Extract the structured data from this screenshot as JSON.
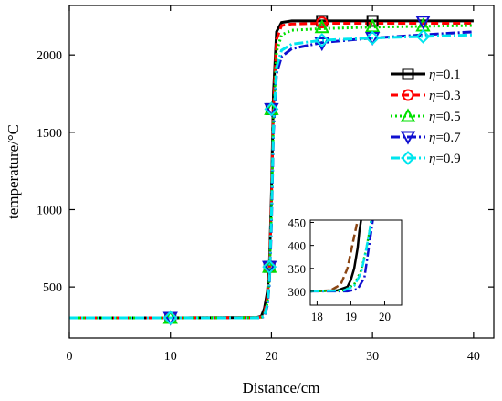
{
  "chart_data": {
    "type": "line",
    "xlabel": "Distance/cm",
    "ylabel": "temperature/°C",
    "xlim": [
      0,
      42
    ],
    "ylim": [
      170,
      2320
    ],
    "x_ticks": [
      0,
      10,
      20,
      30,
      40
    ],
    "x_tick_labels": [
      "0",
      "10",
      "20",
      "30",
      "40"
    ],
    "y_ticks": [
      500,
      1000,
      1500,
      2000
    ],
    "y_tick_labels": [
      "500",
      "1000",
      "1500",
      "2000"
    ],
    "grid": false,
    "legend_position": "right",
    "legend_symbol": "η",
    "series": [
      {
        "name": "=0.1",
        "color": "#000000",
        "dash": "",
        "marker": "square",
        "x": [
          0,
          10,
          18.5,
          19.0,
          19.3,
          19.6,
          19.8,
          20.0,
          20.2,
          20.5,
          21,
          22,
          25,
          30,
          35,
          40
        ],
        "y": [
          300,
          300,
          302,
          310,
          360,
          470,
          640,
          1100,
          1750,
          2150,
          2210,
          2220,
          2220,
          2220,
          2220,
          2220
        ],
        "markers_x": [
          10,
          19.8,
          20,
          25,
          30
        ],
        "markers_y": [
          300,
          630,
          1650,
          2220,
          2220
        ]
      },
      {
        "name": "=0.3",
        "color": "#ff0000",
        "dash": "8,4",
        "marker": "circle",
        "x": [
          0,
          10,
          18.5,
          19.0,
          19.3,
          19.6,
          19.8,
          20.0,
          20.2,
          20.5,
          21,
          22,
          25,
          30,
          35,
          40
        ],
        "y": [
          300,
          300,
          302,
          305,
          330,
          430,
          600,
          1050,
          1650,
          2100,
          2190,
          2200,
          2205,
          2205,
          2205,
          2205
        ],
        "markers_x": [
          10,
          19.8,
          20,
          25
        ],
        "markers_y": [
          300,
          630,
          1650,
          2210
        ]
      },
      {
        "name": "=0.5",
        "color": "#00e000",
        "dash": "2,3",
        "marker": "triangle-up",
        "x": [
          0,
          10,
          18.5,
          19.0,
          19.3,
          19.6,
          19.8,
          20.0,
          20.2,
          20.5,
          21,
          22,
          25,
          30,
          35,
          40
        ],
        "y": [
          300,
          300,
          302,
          304,
          320,
          400,
          560,
          980,
          1580,
          2020,
          2130,
          2160,
          2170,
          2180,
          2185,
          2190
        ],
        "markers_x": [
          10,
          19.8,
          20,
          25,
          30,
          35
        ],
        "markers_y": [
          300,
          630,
          1650,
          2180,
          2185,
          2190
        ]
      },
      {
        "name": "=0.7",
        "color": "#1010d0",
        "dash": "10,3,2,3",
        "marker": "triangle-down",
        "x": [
          0,
          10,
          18.5,
          19.0,
          19.3,
          19.6,
          19.8,
          20.0,
          20.2,
          20.5,
          21,
          22,
          25,
          30,
          35,
          40
        ],
        "y": [
          300,
          300,
          300,
          302,
          310,
          380,
          520,
          900,
          1500,
          1880,
          1990,
          2040,
          2080,
          2110,
          2130,
          2150
        ],
        "markers_x": [
          10,
          19.8,
          20,
          25,
          30,
          35
        ],
        "markers_y": [
          300,
          630,
          1650,
          2075,
          2110,
          2215
        ]
      },
      {
        "name": "=0.9",
        "color": "#00e5ee",
        "dash": "10,3,2,3",
        "marker": "diamond",
        "x": [
          0,
          10,
          18.5,
          19.0,
          19.3,
          19.6,
          19.8,
          20.0,
          20.2,
          20.5,
          21,
          22,
          25,
          30,
          35,
          40
        ],
        "y": [
          300,
          300,
          300,
          302,
          315,
          390,
          540,
          950,
          1540,
          1920,
          2030,
          2070,
          2095,
          2110,
          2120,
          2130
        ],
        "markers_x": [
          10,
          19.8,
          20,
          25,
          30,
          35
        ],
        "markers_y": [
          300,
          630,
          1650,
          2095,
          2110,
          2120
        ]
      }
    ],
    "inset": {
      "xlim": [
        17.8,
        20.5
      ],
      "ylim": [
        270,
        455
      ],
      "x_ticks": [
        18,
        19,
        20
      ],
      "x_tick_labels": [
        "18",
        "19",
        "20"
      ],
      "y_ticks": [
        300,
        350,
        400,
        450
      ],
      "y_tick_labels": [
        "300",
        "350",
        "400",
        "450"
      ],
      "series": [
        {
          "color": "#000000",
          "dash": "",
          "x": [
            17.8,
            18.6,
            18.9,
            19.0,
            19.1,
            19.2,
            19.25,
            19.3
          ],
          "y": [
            300,
            302,
            310,
            325,
            350,
            395,
            430,
            455
          ]
        },
        {
          "color": "#8b4513",
          "dash": "8,4",
          "x": [
            17.8,
            18.4,
            18.7,
            18.9,
            19.0,
            19.1,
            19.2
          ],
          "y": [
            300,
            302,
            315,
            350,
            385,
            420,
            455
          ]
        },
        {
          "color": "#00c000",
          "dash": "2,3",
          "x": [
            17.8,
            18.8,
            19.1,
            19.3,
            19.45,
            19.55,
            19.6
          ],
          "y": [
            300,
            302,
            315,
            345,
            390,
            430,
            455
          ]
        },
        {
          "color": "#1010d0",
          "dash": "10,3,2,3",
          "x": [
            17.8,
            18.9,
            19.2,
            19.4,
            19.5,
            19.6,
            19.65
          ],
          "y": [
            300,
            300,
            305,
            330,
            380,
            430,
            455
          ]
        },
        {
          "color": "#00e5ee",
          "dash": "10,3,2,3",
          "x": [
            17.8,
            18.8,
            19.1,
            19.3,
            19.45,
            19.55,
            19.6
          ],
          "y": [
            300,
            302,
            312,
            340,
            390,
            430,
            455
          ]
        }
      ]
    }
  }
}
